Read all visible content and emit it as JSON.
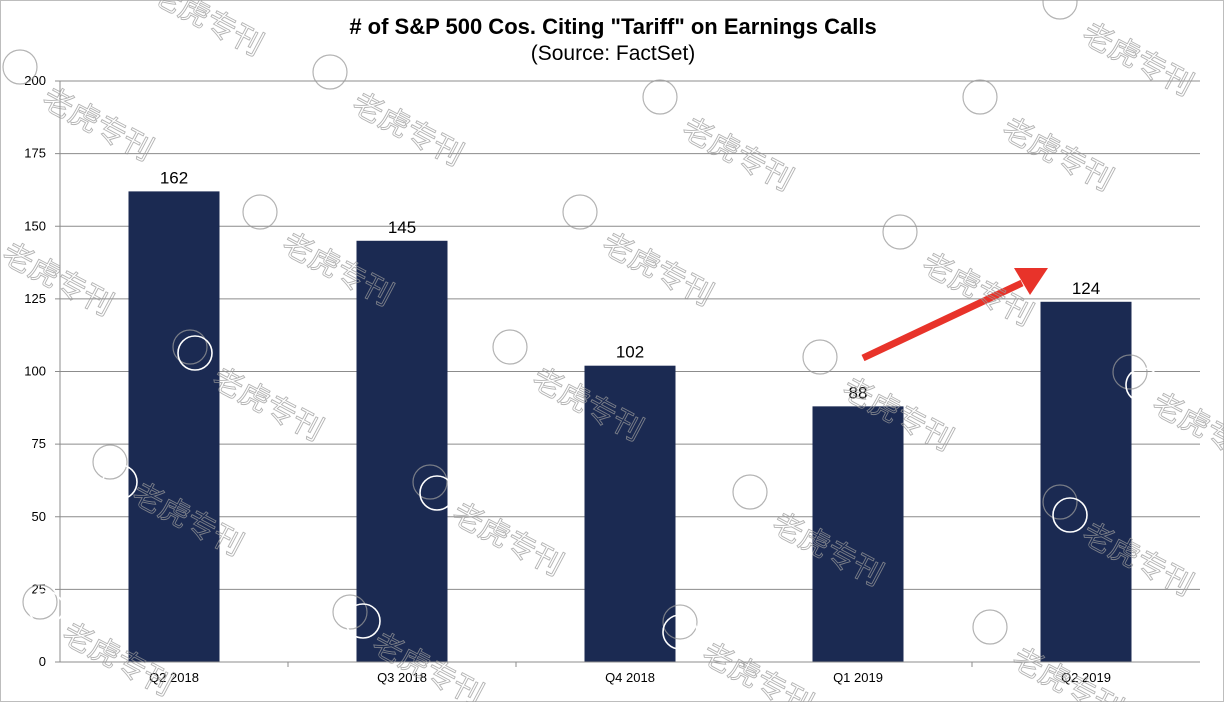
{
  "chart_data": {
    "type": "bar",
    "title": "# of S&P 500 Cos. Citing \"Tariff\" on Earnings Calls",
    "subtitle": "(Source: FactSet)",
    "categories": [
      "Q2 2018",
      "Q3 2018",
      "Q4 2018",
      "Q1 2019",
      "Q2 2019"
    ],
    "values": [
      162,
      145,
      102,
      88,
      124
    ],
    "data_labels": [
      "162",
      "145",
      "102",
      "88",
      "124"
    ],
    "yticks": [
      "0",
      "25",
      "50",
      "75",
      "100",
      "125",
      "150",
      "175",
      "200"
    ],
    "ylim": [
      0,
      200
    ],
    "xlabel": "",
    "ylabel": "",
    "grid": true,
    "legend": "none",
    "bar_color": "#1b2a52",
    "annotation": {
      "type": "arrow",
      "color": "#e8332a",
      "from_category": "Q1 2019",
      "to_category": "Q2 2019"
    }
  },
  "watermark": {
    "text": "老虎专刊"
  }
}
